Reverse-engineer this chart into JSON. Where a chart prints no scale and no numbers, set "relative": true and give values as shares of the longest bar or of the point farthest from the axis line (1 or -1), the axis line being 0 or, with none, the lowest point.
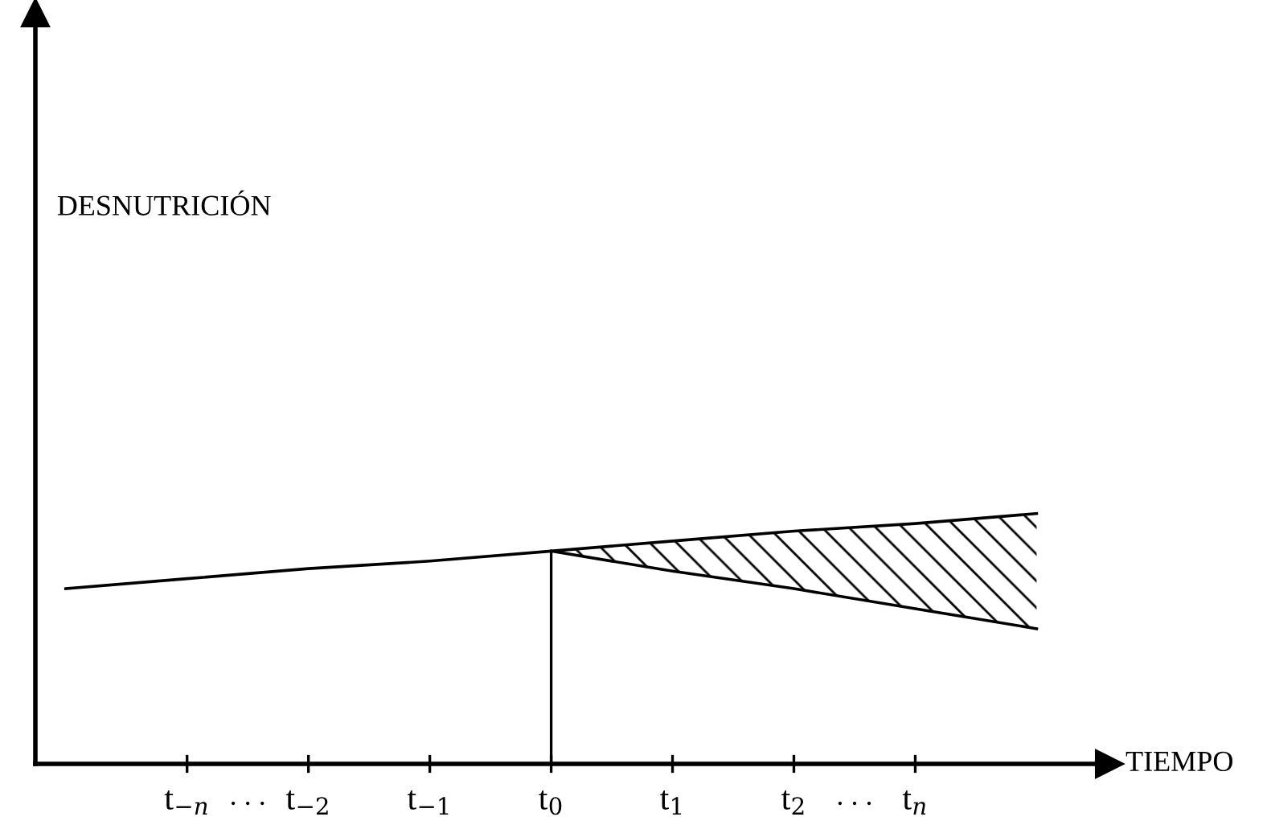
{
  "chart_data": {
    "type": "line",
    "relative": true,
    "xlabel": "TIEMPO",
    "categories": [
      null,
      "t$_{−n}$",
      "t$_{−2}$",
      "t$_{−1}$",
      "t$_{0}$",
      "t$_{1}$",
      "t$_{2}$",
      "t$_{n}$",
      null
    ],
    "annotations": [
      "DESNUTRICIÓN",
      ". . .",
      ". . ."
    ],
    "series": [
      {
        "color": "#000000",
        "values": [
          0.7,
          0.74,
          0.78,
          0.81,
          0.85,
          0.89,
          0.93,
          0.96,
          1.0
        ]
      },
      {
        "color": "#000000",
        "values": [
          null,
          null,
          null,
          null,
          0.85,
          0.77,
          0.7,
          0.62,
          0.54
        ],
        "lower": [
          null,
          null,
          null,
          null,
          0.85,
          0.77,
          0.7,
          0.62,
          0.54
        ],
        "upper": [
          null,
          null,
          null,
          null,
          0.85,
          0.89,
          0.93,
          0.96,
          1.0
        ]
      }
    ],
    "ref_lines": [
      {
        "axis": "x",
        "value": "t$_{0}$",
        "color": "#000000"
      }
    ],
    "legend": false,
    "grid": false,
    "marker": "none",
    "line_style": "solid"
  }
}
